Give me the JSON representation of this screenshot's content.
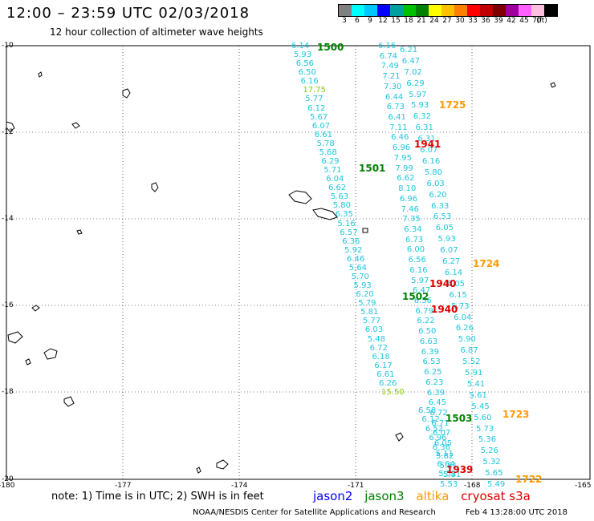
{
  "header": {
    "title": "12:00 – 23:59 UTC 02/03/2018",
    "subtitle": "12 hour collection of altimeter wave heights"
  },
  "colorbar": {
    "colors": [
      "#808080",
      "#00ffff",
      "#00c8ff",
      "#0000ff",
      "#00a0a0",
      "#00c000",
      "#008000",
      "#ffff00",
      "#ffc000",
      "#ff8000",
      "#ff0000",
      "#c00000",
      "#800000",
      "#a000a0",
      "#ff60ff",
      "#ffc0e0",
      "#000000"
    ],
    "labels": [
      "3",
      "6",
      "9",
      "12",
      "15",
      "18",
      "21",
      "24",
      "27",
      "30",
      "33",
      "36",
      "39",
      "42",
      "45",
      "70",
      "(ft)"
    ]
  },
  "axes": {
    "lon_labels": [
      "-180",
      "-177",
      "-174",
      "-171",
      "-168",
      "-165"
    ],
    "lat_labels": [
      "-10",
      "-12",
      "-14",
      "-16",
      "-18",
      "-20"
    ]
  },
  "colors": {
    "cyan": "#1ec6de",
    "jason2": "#0000ff",
    "jason3": "#008000",
    "altika": "#ff9900",
    "cryosat": "#dd0000",
    "lightgreen": "#88cc00"
  },
  "tracks": [
    {
      "name": "cyan-west",
      "values": [
        "6.14",
        "5.93",
        "6.56",
        "6.50",
        "6.16",
        "17.75",
        "5.77",
        "6.12",
        "5.67",
        "6.07",
        "6.61",
        "5.78",
        "5.68",
        "6.29",
        "5.71",
        "6.04",
        "6.62",
        "5.63",
        "5.80",
        "6.35",
        "5.16",
        "6.57",
        "6.36",
        "5.92",
        "6.46",
        "5.64",
        "5.70",
        "5.93",
        "6.20",
        "5.79",
        "5.81",
        "5.77",
        "6.03",
        "5.48",
        "6.72",
        "6.18",
        "6.17",
        "6.61",
        "6.26",
        "15.50"
      ]
    },
    {
      "name": "cyan-mid",
      "values": [
        "6.16",
        "6.74",
        "7.49",
        "7.21",
        "7.30",
        "6.44",
        "6.73",
        "6.41",
        "7.11",
        "6.46",
        "6.96",
        "7.95",
        "7.99",
        "6.62",
        "8.10",
        "6.96",
        "7.46",
        "7.35",
        "6.34",
        "6.73",
        "6.00",
        "6.56",
        "6.16",
        "5.97",
        "6.47",
        "6.56",
        "6.79",
        "6.22",
        "6.50",
        "6.63",
        "6.39",
        "6.53",
        "6.25",
        "6.23",
        "6.39",
        "6.45",
        "6.72",
        "6.71",
        "6.07",
        "6.05",
        "5.11",
        "6.64",
        "5.51",
        "5.53"
      ]
    },
    {
      "name": "cyan-mid2",
      "values": [
        "6.21",
        "6.47",
        "7.02",
        "6.29",
        "5.97",
        "5.93",
        "6.32",
        "6.31",
        "6.31",
        "6.07",
        "6.16",
        "5.80",
        "6.03",
        "6.20",
        "6.33",
        "6.53",
        "6.05",
        "5.93",
        "6.07",
        "6.27",
        "6.14",
        "6.05",
        "6.15",
        "5.73",
        "6.04",
        "6.26",
        "5.90",
        "6.87",
        "5.52",
        "5.91",
        "5.41",
        "5.61",
        "5.45",
        "5.60",
        "5.73",
        "5.36",
        "5.26",
        "5.32",
        "5.65",
        "5.49"
      ]
    },
    {
      "name": "cyan-east",
      "values": [
        "6.58",
        "6.12",
        "6.52",
        "6.96",
        "6.36",
        "5.82",
        "5.81",
        "5.81"
      ]
    }
  ],
  "passes": [
    {
      "label": "1500",
      "color_key": "jason3"
    },
    {
      "label": "1725",
      "color_key": "altika"
    },
    {
      "label": "1941",
      "color_key": "cryosat"
    },
    {
      "label": "1501",
      "color_key": "jason3"
    },
    {
      "label": "1724",
      "color_key": "altika"
    },
    {
      "label": "1940",
      "color_key": "cryosat"
    },
    {
      "label": "1502",
      "color_key": "jason3"
    },
    {
      "label": "1940",
      "color_key": "cryosat"
    },
    {
      "label": "1503",
      "color_key": "jason3"
    },
    {
      "label": "1723",
      "color_key": "altika"
    },
    {
      "label": "1939",
      "color_key": "cryosat"
    },
    {
      "label": "1722",
      "color_key": "altika"
    }
  ],
  "footer": {
    "note": "note: 1) Time is in UTC; 2) SWH is in feet",
    "legend": [
      "jason2",
      "jason3",
      "altika",
      "cryosat s3a"
    ],
    "credit": "NOAA/NESDIS Center for Satellite Applications and Research",
    "timestamp": "Feb  4 13:28:00 UTC 2018"
  }
}
